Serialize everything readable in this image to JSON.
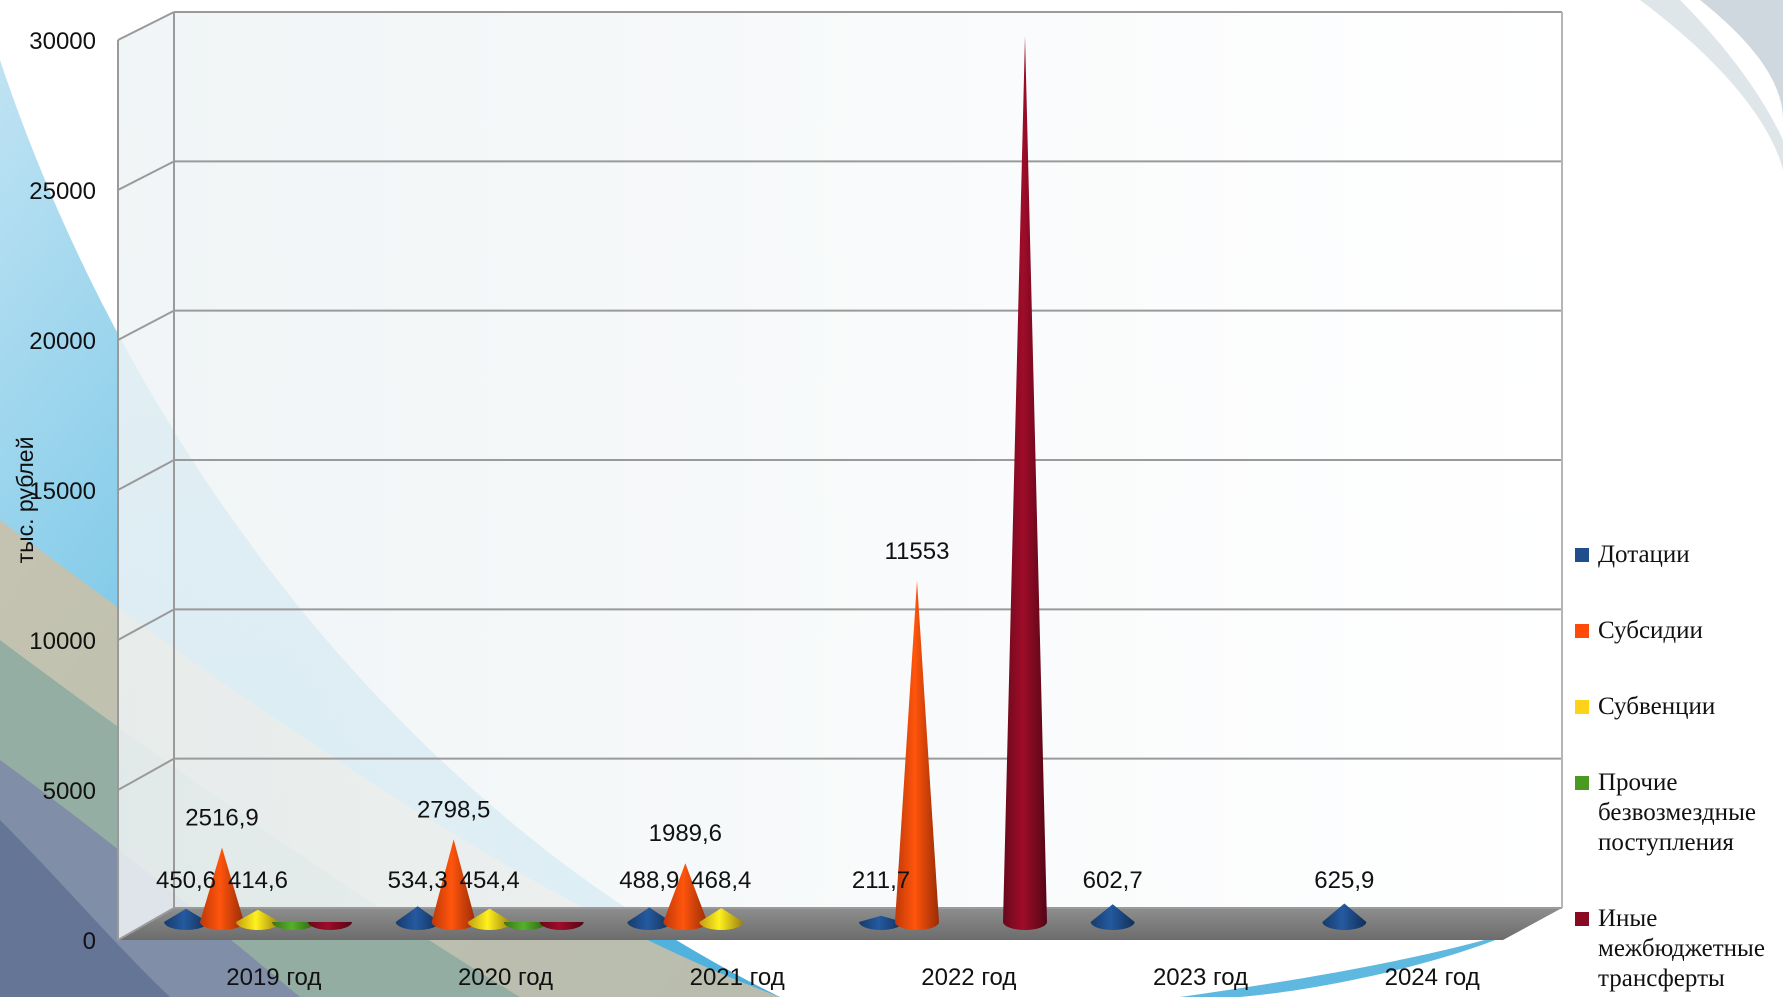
{
  "chart_data": {
    "type": "bar",
    "bar_shape": "3d-cone",
    "title": "",
    "xlabel": "",
    "ylabel": "тыс. рублей",
    "ylim": [
      0,
      30000
    ],
    "yticks": [
      "0",
      "5000",
      "10000",
      "15000",
      "20000",
      "25000",
      "30000"
    ],
    "grid": true,
    "legend_position": "right",
    "categories": [
      "2019 год",
      "2020 год",
      "2021 год",
      "2022 год",
      "2023 год",
      "2024 год"
    ],
    "series": [
      {
        "name": "Дотации",
        "color": "#1f4e8c",
        "values": [
          450.6,
          534.3,
          488.9,
          211.7,
          602.7,
          625.9
        ],
        "labels": [
          "450,6",
          "534,3",
          "488,9",
          "211,7",
          "602,7",
          "625,9"
        ]
      },
      {
        "name": "Субсидии",
        "color": "#ff4a0a",
        "values": [
          2516.9,
          2798.5,
          1989.6,
          11553,
          null,
          null
        ],
        "labels": [
          "2516,9",
          "2798,5",
          "1989,6",
          "11553",
          "",
          ""
        ]
      },
      {
        "name": "Субвенции",
        "color": "#ffd21a",
        "values": [
          414.6,
          454.4,
          468.4,
          null,
          null,
          null
        ],
        "labels": [
          "414,6",
          "454,4",
          "468,4",
          "",
          "",
          ""
        ]
      },
      {
        "name": "Прочие безвозмездные поступления",
        "color": "#4a9a22",
        "values": [
          0,
          0,
          null,
          null,
          null,
          null
        ],
        "labels": [
          "",
          "",
          "",
          "",
          "",
          ""
        ]
      },
      {
        "name": "Иные межбюджетные трансферты",
        "color": "#8a0a24",
        "values": [
          0,
          0,
          null,
          30000,
          null,
          null
        ],
        "labels": [
          "",
          "",
          "",
          "",
          "",
          ""
        ]
      }
    ]
  },
  "legend": {
    "items": [
      {
        "color": "#1f4e8c",
        "lines": [
          "Дотации"
        ]
      },
      {
        "color": "#ff4a0a",
        "lines": [
          "Субсидии"
        ]
      },
      {
        "color": "#ffd21a",
        "lines": [
          "Субвенции"
        ]
      },
      {
        "color": "#4a9a22",
        "lines": [
          "Прочие",
          "безвозмездные",
          "поступления"
        ]
      },
      {
        "color": "#8a0a24",
        "lines": [
          "Иные",
          "межбюджетные",
          "трансферты"
        ]
      }
    ]
  }
}
